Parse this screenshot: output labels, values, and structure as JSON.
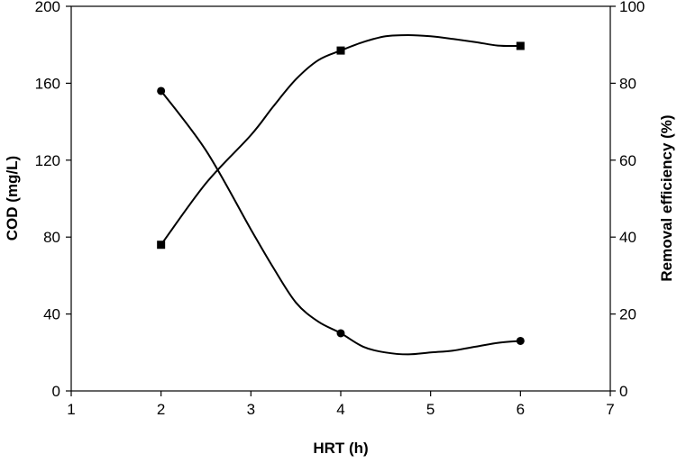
{
  "chart_data": {
    "type": "line",
    "xlabel": "HRT (h)",
    "ylabel": "COD (mg/L)",
    "y2label": "Removal efficiency (%)",
    "xlim": [
      1,
      7
    ],
    "ylim": [
      0,
      200
    ],
    "y2lim": [
      0,
      100
    ],
    "x_ticks": [
      "1",
      "2",
      "3",
      "4",
      "5",
      "6",
      "7"
    ],
    "y_ticks": [
      "0",
      "40",
      "80",
      "120",
      "160",
      "200"
    ],
    "y2_ticks": [
      "0",
      "20",
      "40",
      "60",
      "80",
      "100"
    ],
    "grid": false,
    "legend": "none",
    "series": [
      {
        "axis": "left",
        "marker": "circle",
        "color": "#000000",
        "x": [
          2,
          4,
          6
        ],
        "values": [
          156,
          30,
          26
        ],
        "curve": [
          [
            2,
            156
          ],
          [
            2.5,
            125
          ],
          [
            3,
            84
          ],
          [
            3.25,
            64
          ],
          [
            3.5,
            46
          ],
          [
            3.75,
            36
          ],
          [
            4,
            30
          ],
          [
            4.25,
            23
          ],
          [
            4.5,
            20
          ],
          [
            4.75,
            19
          ],
          [
            5,
            20
          ],
          [
            5.25,
            21
          ],
          [
            5.5,
            23
          ],
          [
            5.75,
            25
          ],
          [
            6,
            26
          ]
        ]
      },
      {
        "axis": "right",
        "marker": "square",
        "color": "#000000",
        "x": [
          2,
          4,
          6
        ],
        "values": [
          38,
          88.5,
          89.7
        ],
        "curve": [
          [
            2,
            38
          ],
          [
            2.5,
            54
          ],
          [
            3,
            66.5
          ],
          [
            3.25,
            74
          ],
          [
            3.5,
            81
          ],
          [
            3.75,
            86
          ],
          [
            4,
            88.5
          ],
          [
            4.25,
            90.7
          ],
          [
            4.5,
            92.2
          ],
          [
            4.75,
            92.5
          ],
          [
            5,
            92.2
          ],
          [
            5.25,
            91.5
          ],
          [
            5.5,
            90.7
          ],
          [
            5.75,
            89.8
          ],
          [
            6,
            89.7
          ]
        ]
      }
    ]
  }
}
